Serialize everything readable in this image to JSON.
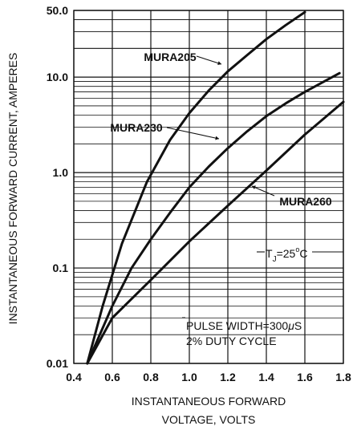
{
  "chart_data": {
    "type": "line",
    "xlabel_lines": [
      "INSTANTANEOUS FORWARD",
      "VOLTAGE, VOLTS"
    ],
    "ylabel": "INSTANTANEOUS FORWARD CURRENT, AMPERES",
    "xlim": [
      0.4,
      1.8
    ],
    "ylim": [
      0.01,
      50
    ],
    "y_scale": "log",
    "grid": true,
    "x_ticks": [
      "0.4",
      "0.6",
      "0.8",
      "1.0",
      "1.2",
      "1.4",
      "1.6",
      "1.8"
    ],
    "y_ticks": [
      "0.01",
      "0.1",
      "1.0",
      "10.0",
      "50.0"
    ],
    "series": [
      {
        "name": "MURA205",
        "x": [
          0.47,
          0.55,
          0.65,
          0.78,
          0.9,
          1.0,
          1.1,
          1.2,
          1.3,
          1.4,
          1.5,
          1.6
        ],
        "y": [
          0.01,
          0.04,
          0.18,
          0.8,
          2.2,
          4.2,
          7.2,
          11.5,
          17,
          25,
          35,
          48
        ]
      },
      {
        "name": "MURA230",
        "x": [
          0.47,
          0.6,
          0.7,
          0.8,
          0.9,
          1.0,
          1.1,
          1.2,
          1.3,
          1.4,
          1.5,
          1.6,
          1.7,
          1.78
        ],
        "y": [
          0.01,
          0.04,
          0.1,
          0.2,
          0.38,
          0.7,
          1.15,
          1.8,
          2.7,
          3.9,
          5.3,
          7.0,
          9.0,
          11.0
        ]
      },
      {
        "name": "MURA260",
        "x": [
          0.47,
          0.6,
          0.8,
          1.0,
          1.2,
          1.4,
          1.6,
          1.8
        ],
        "y": [
          0.01,
          0.03,
          0.075,
          0.19,
          0.45,
          1.05,
          2.5,
          5.5
        ]
      }
    ],
    "annotations": {
      "temperature": {
        "prefix": "T",
        "subscript": "J",
        "value": "=25",
        "superscript": "o",
        "suffix": "C"
      },
      "pulse_note": [
        {
          "lead": "PULSE WIDTH=300",
          "symbol": "μ",
          "tail": "S"
        },
        {
          "lead": "2% DUTY CYCLE",
          "symbol": "",
          "tail": ""
        }
      ]
    }
  }
}
